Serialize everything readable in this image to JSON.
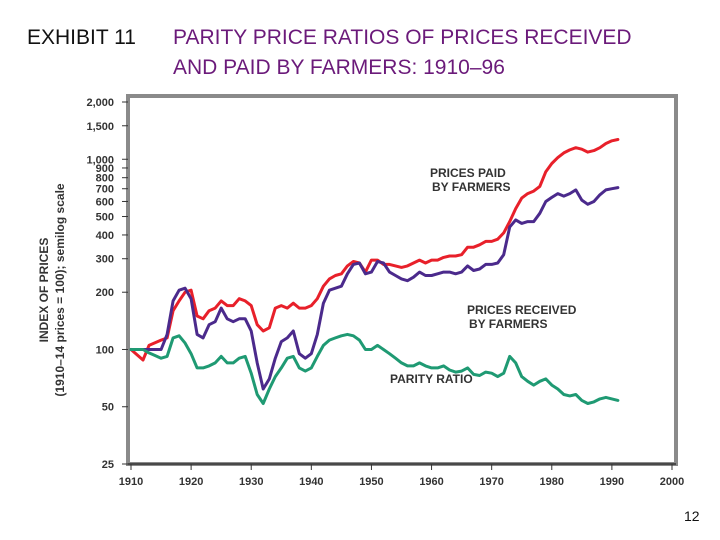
{
  "header": {
    "exhibit": "EXHIBIT 11",
    "title_line1": "PARITY PRICE RATIOS OF PRICES RECEIVED",
    "title_line2": "AND PAID BY FARMERS: 1910–96"
  },
  "page_number": "12",
  "colors": {
    "frame": "#8a8a8a",
    "prices_paid": "#e8202a",
    "prices_received": "#4b2a8c",
    "parity_ratio": "#1f9a73"
  },
  "chart_data": {
    "type": "line",
    "title": "PARITY PRICE RATIOS OF PRICES RECEIVED AND PAID BY FARMERS: 1910–96",
    "ylabel_line1": "INDEX OF PRICES",
    "ylabel_line2": "(1910–14 prices = 100); semilog scale",
    "y_scale": "log",
    "xlim": [
      1910,
      2000
    ],
    "ylim": [
      25,
      2000
    ],
    "x_ticks": [
      "1910",
      "1920",
      "1930",
      "1940",
      "1950",
      "1960",
      "1970",
      "1980",
      "1990",
      "2000"
    ],
    "x_tick_values": [
      1910,
      1920,
      1930,
      1940,
      1950,
      1960,
      1970,
      1980,
      1990,
      2000
    ],
    "y_ticks": [
      "2,000",
      "1,500",
      "1,000",
      "900",
      "800",
      "700",
      "600",
      "500",
      "400",
      "300",
      "200",
      "100",
      "50",
      "25"
    ],
    "y_tick_values": [
      2000,
      1500,
      1000,
      900,
      800,
      700,
      600,
      500,
      400,
      300,
      200,
      100,
      50,
      25
    ],
    "grid": false,
    "series": [
      {
        "name": "PRICES PAID BY FARMERS",
        "label_line1": "PRICES PAID",
        "label_line2": "BY FARMERS",
        "color_key": "prices_paid",
        "points": [
          [
            1910,
            100
          ],
          [
            1912,
            88
          ],
          [
            1913,
            105
          ],
          [
            1915,
            112
          ],
          [
            1916,
            115
          ],
          [
            1917,
            160
          ],
          [
            1918,
            180
          ],
          [
            1919,
            200
          ],
          [
            1920,
            205
          ],
          [
            1921,
            150
          ],
          [
            1922,
            145
          ],
          [
            1923,
            160
          ],
          [
            1924,
            165
          ],
          [
            1925,
            180
          ],
          [
            1926,
            170
          ],
          [
            1927,
            170
          ],
          [
            1928,
            185
          ],
          [
            1929,
            180
          ],
          [
            1930,
            170
          ],
          [
            1931,
            135
          ],
          [
            1932,
            125
          ],
          [
            1933,
            130
          ],
          [
            1934,
            165
          ],
          [
            1935,
            170
          ],
          [
            1936,
            165
          ],
          [
            1937,
            175
          ],
          [
            1938,
            165
          ],
          [
            1939,
            165
          ],
          [
            1940,
            170
          ],
          [
            1941,
            185
          ],
          [
            1942,
            215
          ],
          [
            1943,
            235
          ],
          [
            1944,
            245
          ],
          [
            1945,
            250
          ],
          [
            1946,
            275
          ],
          [
            1947,
            290
          ],
          [
            1948,
            285
          ],
          [
            1949,
            255
          ],
          [
            1950,
            295
          ],
          [
            1951,
            295
          ],
          [
            1952,
            280
          ],
          [
            1953,
            280
          ],
          [
            1954,
            275
          ],
          [
            1955,
            270
          ],
          [
            1956,
            275
          ],
          [
            1957,
            285
          ],
          [
            1958,
            295
          ],
          [
            1959,
            285
          ],
          [
            1960,
            295
          ],
          [
            1961,
            295
          ],
          [
            1962,
            305
          ],
          [
            1963,
            310
          ],
          [
            1964,
            310
          ],
          [
            1965,
            315
          ],
          [
            1966,
            345
          ],
          [
            1967,
            345
          ],
          [
            1968,
            355
          ],
          [
            1969,
            370
          ],
          [
            1970,
            370
          ],
          [
            1971,
            380
          ],
          [
            1972,
            410
          ],
          [
            1973,
            470
          ],
          [
            1974,
            550
          ],
          [
            1975,
            625
          ],
          [
            1976,
            660
          ],
          [
            1977,
            680
          ],
          [
            1978,
            720
          ],
          [
            1979,
            860
          ],
          [
            1980,
            950
          ],
          [
            1981,
            1020
          ],
          [
            1982,
            1080
          ],
          [
            1983,
            1120
          ],
          [
            1984,
            1150
          ],
          [
            1985,
            1130
          ],
          [
            1986,
            1090
          ],
          [
            1987,
            1110
          ],
          [
            1988,
            1150
          ],
          [
            1989,
            1210
          ],
          [
            1990,
            1250
          ],
          [
            1991,
            1270
          ]
        ]
      },
      {
        "name": "PRICES RECEIVED BY FARMERS",
        "label_line1": "PRICES RECEIVED",
        "label_line2": "BY FARMERS",
        "color_key": "prices_received",
        "points": [
          [
            1910,
            100
          ],
          [
            1912,
            100
          ],
          [
            1914,
            100
          ],
          [
            1915,
            100
          ],
          [
            1916,
            120
          ],
          [
            1917,
            180
          ],
          [
            1918,
            205
          ],
          [
            1919,
            210
          ],
          [
            1920,
            185
          ],
          [
            1921,
            120
          ],
          [
            1922,
            115
          ],
          [
            1923,
            135
          ],
          [
            1924,
            140
          ],
          [
            1925,
            165
          ],
          [
            1926,
            145
          ],
          [
            1927,
            140
          ],
          [
            1928,
            145
          ],
          [
            1929,
            145
          ],
          [
            1930,
            125
          ],
          [
            1931,
            85
          ],
          [
            1932,
            62
          ],
          [
            1933,
            70
          ],
          [
            1934,
            90
          ],
          [
            1935,
            110
          ],
          [
            1936,
            115
          ],
          [
            1937,
            125
          ],
          [
            1938,
            95
          ],
          [
            1939,
            90
          ],
          [
            1940,
            95
          ],
          [
            1941,
            120
          ],
          [
            1942,
            175
          ],
          [
            1943,
            205
          ],
          [
            1944,
            210
          ],
          [
            1945,
            215
          ],
          [
            1946,
            250
          ],
          [
            1947,
            280
          ],
          [
            1948,
            285
          ],
          [
            1949,
            250
          ],
          [
            1950,
            255
          ],
          [
            1951,
            290
          ],
          [
            1952,
            285
          ],
          [
            1953,
            255
          ],
          [
            1954,
            245
          ],
          [
            1955,
            235
          ],
          [
            1956,
            230
          ],
          [
            1957,
            240
          ],
          [
            1958,
            255
          ],
          [
            1959,
            245
          ],
          [
            1960,
            245
          ],
          [
            1961,
            250
          ],
          [
            1962,
            255
          ],
          [
            1963,
            255
          ],
          [
            1964,
            250
          ],
          [
            1965,
            255
          ],
          [
            1966,
            275
          ],
          [
            1967,
            260
          ],
          [
            1968,
            265
          ],
          [
            1969,
            280
          ],
          [
            1970,
            280
          ],
          [
            1971,
            285
          ],
          [
            1972,
            315
          ],
          [
            1973,
            440
          ],
          [
            1974,
            480
          ],
          [
            1975,
            460
          ],
          [
            1976,
            470
          ],
          [
            1977,
            470
          ],
          [
            1978,
            520
          ],
          [
            1979,
            600
          ],
          [
            1980,
            630
          ],
          [
            1981,
            660
          ],
          [
            1982,
            640
          ],
          [
            1983,
            660
          ],
          [
            1984,
            690
          ],
          [
            1985,
            610
          ],
          [
            1986,
            580
          ],
          [
            1987,
            600
          ],
          [
            1988,
            650
          ],
          [
            1989,
            690
          ],
          [
            1990,
            700
          ],
          [
            1991,
            710
          ]
        ]
      },
      {
        "name": "PARITY RATIO",
        "label_line1": "PARITY RATIO",
        "label_line2": "",
        "color_key": "parity_ratio",
        "points": [
          [
            1910,
            100
          ],
          [
            1912,
            100
          ],
          [
            1913,
            96
          ],
          [
            1914,
            93
          ],
          [
            1915,
            90
          ],
          [
            1916,
            92
          ],
          [
            1917,
            115
          ],
          [
            1918,
            118
          ],
          [
            1919,
            108
          ],
          [
            1920,
            95
          ],
          [
            1921,
            80
          ],
          [
            1922,
            80
          ],
          [
            1923,
            82
          ],
          [
            1924,
            85
          ],
          [
            1925,
            92
          ],
          [
            1926,
            85
          ],
          [
            1927,
            85
          ],
          [
            1928,
            90
          ],
          [
            1929,
            92
          ],
          [
            1930,
            75
          ],
          [
            1931,
            58
          ],
          [
            1932,
            52
          ],
          [
            1933,
            62
          ],
          [
            1934,
            72
          ],
          [
            1935,
            80
          ],
          [
            1936,
            90
          ],
          [
            1937,
            92
          ],
          [
            1938,
            80
          ],
          [
            1939,
            77
          ],
          [
            1940,
            80
          ],
          [
            1941,
            92
          ],
          [
            1942,
            105
          ],
          [
            1943,
            112
          ],
          [
            1944,
            115
          ],
          [
            1945,
            118
          ],
          [
            1946,
            120
          ],
          [
            1947,
            118
          ],
          [
            1948,
            112
          ],
          [
            1949,
            100
          ],
          [
            1950,
            100
          ],
          [
            1951,
            105
          ],
          [
            1952,
            100
          ],
          [
            1953,
            95
          ],
          [
            1954,
            90
          ],
          [
            1955,
            85
          ],
          [
            1956,
            82
          ],
          [
            1957,
            82
          ],
          [
            1958,
            85
          ],
          [
            1959,
            82
          ],
          [
            1960,
            80
          ],
          [
            1961,
            80
          ],
          [
            1962,
            82
          ],
          [
            1963,
            78
          ],
          [
            1964,
            76
          ],
          [
            1965,
            77
          ],
          [
            1966,
            80
          ],
          [
            1967,
            74
          ],
          [
            1968,
            73
          ],
          [
            1969,
            76
          ],
          [
            1970,
            75
          ],
          [
            1971,
            72
          ],
          [
            1972,
            75
          ],
          [
            1973,
            92
          ],
          [
            1974,
            85
          ],
          [
            1975,
            72
          ],
          [
            1976,
            68
          ],
          [
            1977,
            65
          ],
          [
            1978,
            68
          ],
          [
            1979,
            70
          ],
          [
            1980,
            65
          ],
          [
            1981,
            62
          ],
          [
            1982,
            58
          ],
          [
            1983,
            57
          ],
          [
            1984,
            58
          ],
          [
            1985,
            54
          ],
          [
            1986,
            52
          ],
          [
            1987,
            53
          ],
          [
            1988,
            55
          ],
          [
            1989,
            56
          ],
          [
            1990,
            55
          ],
          [
            1991,
            54
          ]
        ]
      }
    ]
  }
}
